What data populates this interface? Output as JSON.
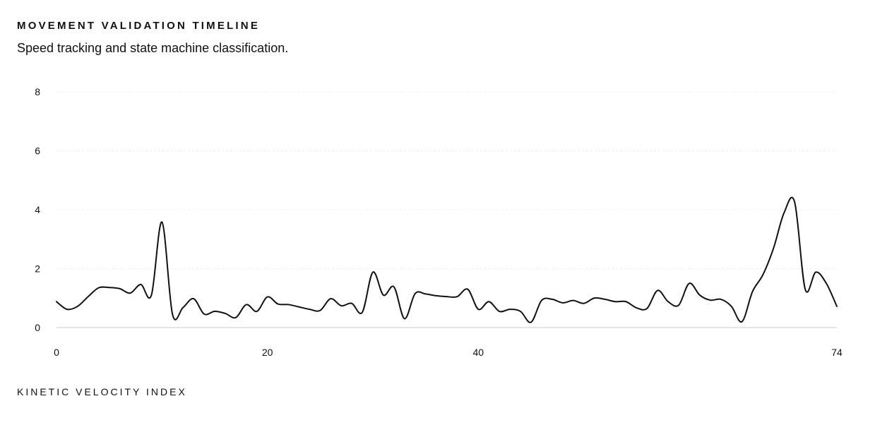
{
  "header": {
    "title": "MOVEMENT VALIDATION TIMELINE",
    "subtitle": "Speed tracking and state machine classification."
  },
  "colors": {
    "line": "#111111",
    "grid": "#ececec",
    "baseline": "#dddddd"
  },
  "chart_data": {
    "type": "line",
    "title": "MOVEMENT VALIDATION TIMELINE",
    "subtitle": "Speed tracking and state machine classification.",
    "xlabel": "KINETIC VELOCITY INDEX",
    "ylabel": "",
    "xlim": [
      0,
      74
    ],
    "ylim": [
      0,
      8
    ],
    "x_ticks": [
      0,
      20,
      40,
      74
    ],
    "y_ticks": [
      0,
      2,
      4,
      6,
      8
    ],
    "grid": true,
    "legend": "none",
    "series": [
      {
        "x": [
          0,
          1,
          2,
          3,
          4,
          5,
          6,
          7,
          8,
          9,
          10,
          11,
          12,
          13,
          14,
          15,
          16,
          17,
          18,
          19,
          20,
          21,
          22,
          23,
          24,
          25,
          26,
          27,
          28,
          29,
          30,
          31,
          32,
          33,
          34,
          35,
          36,
          37,
          38,
          39,
          40,
          41,
          42,
          43,
          44,
          45,
          46,
          47,
          48,
          49,
          50,
          51,
          52,
          53,
          54,
          55,
          56,
          57,
          58,
          59,
          60,
          61,
          62,
          63,
          64,
          65,
          66,
          67,
          68,
          69,
          70,
          71,
          72,
          73,
          74
        ],
        "values": [
          0.88,
          0.62,
          0.72,
          1.05,
          1.35,
          1.36,
          1.32,
          1.17,
          1.46,
          1.1,
          3.58,
          0.45,
          0.68,
          0.98,
          0.46,
          0.55,
          0.48,
          0.34,
          0.78,
          0.55,
          1.04,
          0.8,
          0.78,
          0.7,
          0.62,
          0.58,
          0.98,
          0.74,
          0.82,
          0.52,
          1.88,
          1.1,
          1.38,
          0.3,
          1.15,
          1.14,
          1.08,
          1.05,
          1.05,
          1.3,
          0.62,
          0.88,
          0.55,
          0.62,
          0.55,
          0.18,
          0.92,
          0.96,
          0.84,
          0.92,
          0.82,
          1.0,
          0.96,
          0.88,
          0.88,
          0.67,
          0.65,
          1.26,
          0.88,
          0.76,
          1.5,
          1.1,
          0.93,
          0.96,
          0.72,
          0.2,
          1.22,
          1.8,
          2.7,
          3.9,
          4.25,
          1.3,
          1.88,
          1.5,
          0.72
        ]
      }
    ]
  }
}
